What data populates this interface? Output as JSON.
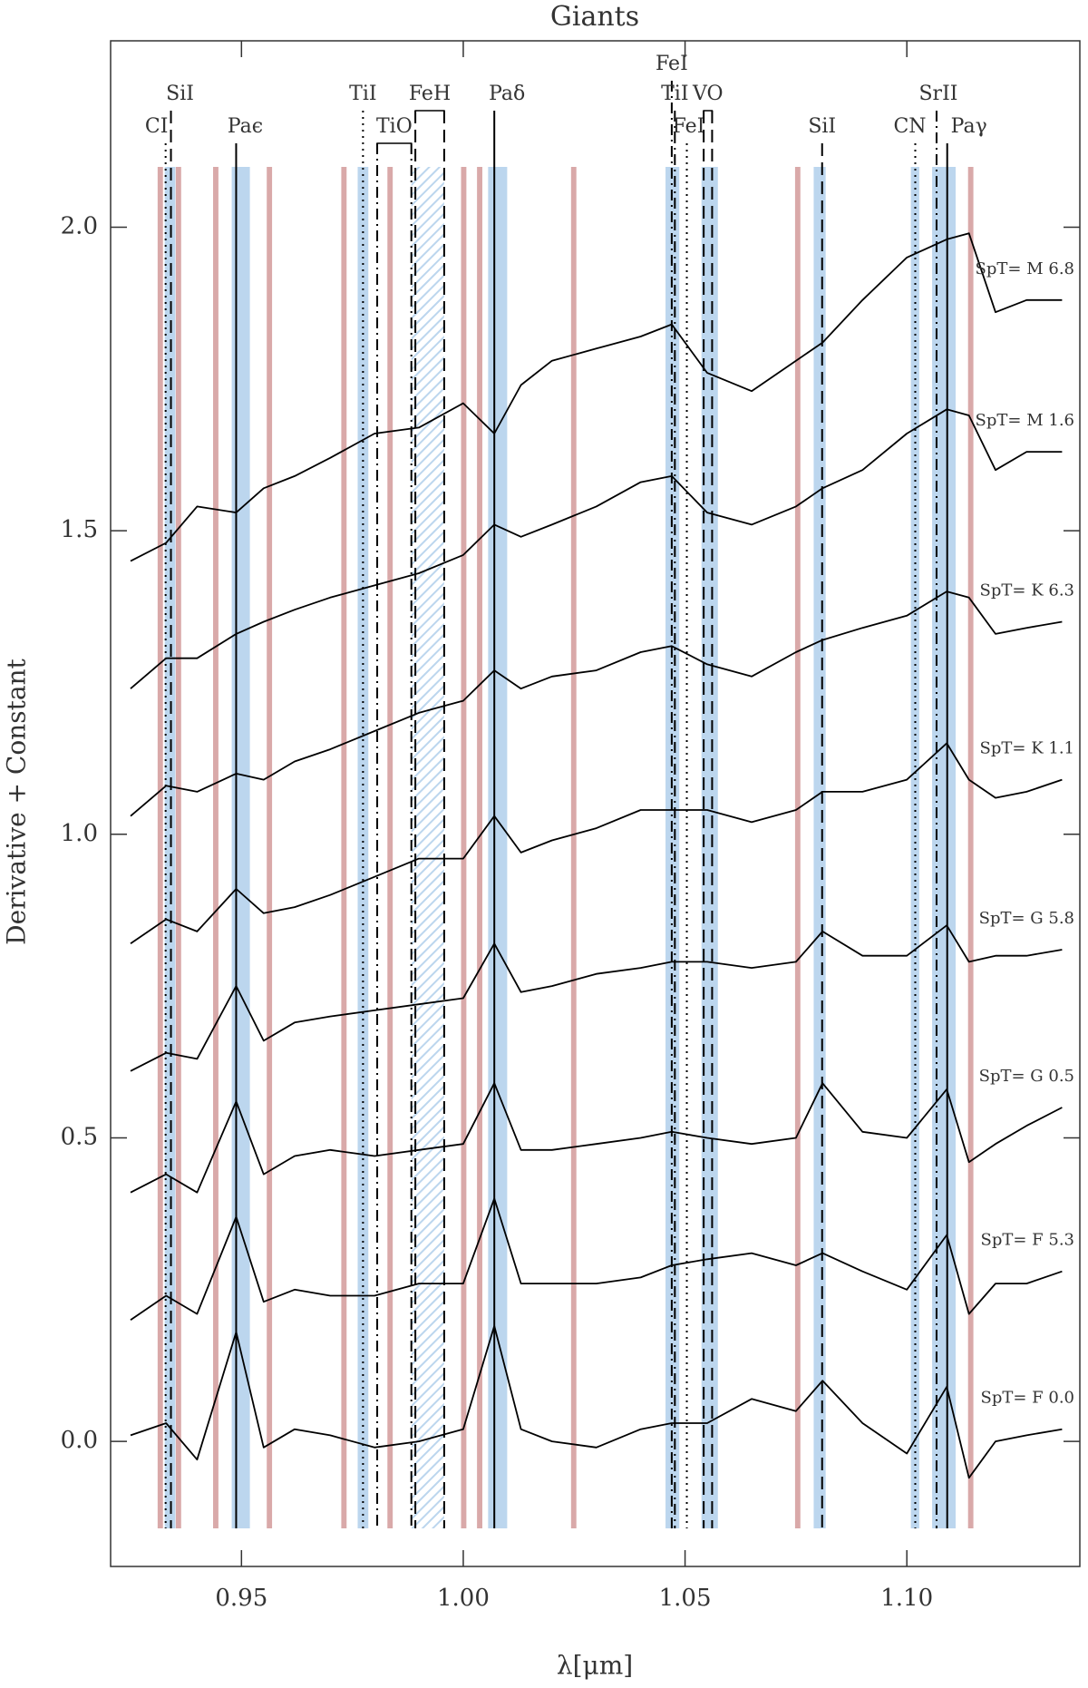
{
  "chart_data": {
    "type": "line",
    "title": "Giants",
    "xlabel": "λ[μm]",
    "ylabel": "Derivative + Constant",
    "xlim": [
      0.9205,
      1.139
    ],
    "ylim": [
      -0.206,
      2.307
    ],
    "xticks": [
      0.95,
      {
        "value": 1.0,
        "label": "1.00"
      },
      1.05,
      {
        "value": 1.1,
        "label": "1.10"
      }
    ],
    "yticks": [
      {
        "value": 0,
        "label": "0.0"
      },
      0.5,
      {
        "value": 1.0,
        "label": "1.0"
      },
      1.5,
      {
        "value": 2.0,
        "label": "2.0"
      }
    ],
    "x": [
      0.925,
      0.933,
      0.94,
      0.9488,
      0.955,
      0.962,
      0.97,
      0.98,
      0.99,
      1.0,
      1.007,
      1.013,
      1.02,
      1.03,
      1.04,
      1.047,
      1.055,
      1.065,
      1.075,
      1.081,
      1.09,
      1.1,
      1.109,
      1.114,
      1.12,
      1.127,
      1.135
    ],
    "series": [
      {
        "name": "SpT= F 0.0",
        "color": "#000000",
        "values": [
          0.01,
          0.03,
          -0.03,
          0.18,
          -0.01,
          0.02,
          0.01,
          -0.01,
          0.0,
          0.02,
          0.19,
          0.02,
          0.0,
          -0.01,
          0.02,
          0.03,
          0.03,
          0.07,
          0.05,
          0.1,
          0.03,
          -0.02,
          0.09,
          -0.06,
          0.0,
          0.01,
          0.02
        ]
      },
      {
        "name": "SpT= F 5.3",
        "color": "#000000",
        "values": [
          0.2,
          0.24,
          0.21,
          0.37,
          0.23,
          0.25,
          0.24,
          0.24,
          0.26,
          0.26,
          0.4,
          0.26,
          0.26,
          0.26,
          0.27,
          0.29,
          0.3,
          0.31,
          0.29,
          0.31,
          0.28,
          0.25,
          0.34,
          0.21,
          0.26,
          0.26,
          0.28
        ]
      },
      {
        "name": "SpT= G 0.5",
        "color": "#000000",
        "values": [
          0.41,
          0.44,
          0.41,
          0.56,
          0.44,
          0.47,
          0.48,
          0.47,
          0.48,
          0.49,
          0.59,
          0.48,
          0.48,
          0.49,
          0.5,
          0.51,
          0.5,
          0.49,
          0.5,
          0.59,
          0.51,
          0.5,
          0.58,
          0.46,
          0.49,
          0.52,
          0.55
        ]
      },
      {
        "name": "SpT= G 5.8",
        "color": "#000000",
        "values": [
          0.61,
          0.64,
          0.63,
          0.75,
          0.66,
          0.69,
          0.7,
          0.71,
          0.72,
          0.73,
          0.82,
          0.74,
          0.75,
          0.77,
          0.78,
          0.79,
          0.79,
          0.78,
          0.79,
          0.84,
          0.8,
          0.8,
          0.85,
          0.79,
          0.8,
          0.8,
          0.81
        ]
      },
      {
        "name": "SpT= K 1.1",
        "color": "#000000",
        "values": [
          0.82,
          0.86,
          0.84,
          0.91,
          0.87,
          0.88,
          0.9,
          0.93,
          0.96,
          0.96,
          1.03,
          0.97,
          0.99,
          1.01,
          1.04,
          1.04,
          1.04,
          1.02,
          1.04,
          1.07,
          1.07,
          1.09,
          1.15,
          1.09,
          1.06,
          1.07,
          1.09
        ]
      },
      {
        "name": "SpT= K 6.3",
        "color": "#000000",
        "values": [
          1.03,
          1.08,
          1.07,
          1.1,
          1.09,
          1.12,
          1.14,
          1.17,
          1.2,
          1.22,
          1.27,
          1.24,
          1.26,
          1.27,
          1.3,
          1.31,
          1.28,
          1.26,
          1.3,
          1.32,
          1.34,
          1.36,
          1.4,
          1.39,
          1.33,
          1.34,
          1.35
        ]
      },
      {
        "name": "SpT= M 1.6",
        "color": "#000000",
        "values": [
          1.24,
          1.29,
          1.29,
          1.33,
          1.35,
          1.37,
          1.39,
          1.41,
          1.43,
          1.46,
          1.51,
          1.49,
          1.51,
          1.54,
          1.58,
          1.59,
          1.53,
          1.51,
          1.54,
          1.57,
          1.6,
          1.66,
          1.7,
          1.69,
          1.6,
          1.63,
          1.63
        ]
      },
      {
        "name": "SpT= M 6.8",
        "color": "#000000",
        "values": [
          1.45,
          1.48,
          1.54,
          1.53,
          1.57,
          1.59,
          1.62,
          1.66,
          1.67,
          1.71,
          1.66,
          1.74,
          1.78,
          1.8,
          1.82,
          1.84,
          1.76,
          1.73,
          1.78,
          1.81,
          1.88,
          1.95,
          1.98,
          1.99,
          1.86,
          1.88,
          1.88
        ]
      }
    ],
    "features": [
      {
        "label": "CI",
        "x": [
          0.9329
        ],
        "style": "dotted"
      },
      {
        "label": "SiI",
        "x": [
          0.9341
        ],
        "style": "dashed"
      },
      {
        "label": "Paϵ",
        "x": [
          0.9488
        ],
        "style": "solid"
      },
      {
        "label": "TiI",
        "x": [
          0.9774
        ],
        "style": "dotted"
      },
      {
        "label": "TiO",
        "x": [
          0.9806,
          0.9883
        ],
        "style": "dashdot"
      },
      {
        "label": "FeH",
        "x": [
          0.9892,
          0.9957
        ],
        "style": "dashed"
      },
      {
        "label": "Paδ",
        "x": [
          1.007
        ],
        "style": "solid"
      },
      {
        "label": "FeI",
        "x": [
          1.047
        ],
        "style": "dashdot"
      },
      {
        "label": "TiI",
        "x": [
          1.0477
        ],
        "style": "dashdot"
      },
      {
        "label": "FeI",
        "x": [
          1.0504
        ],
        "style": "dotted"
      },
      {
        "label": "VO",
        "x": [
          1.0542,
          1.0561
        ],
        "style": "dashed"
      },
      {
        "label": "SiI",
        "x": [
          1.0809
        ],
        "style": "dashed"
      },
      {
        "label": "CN",
        "x": [
          1.1019
        ],
        "style": "dotted"
      },
      {
        "label": "SrII",
        "x": [
          1.1067
        ],
        "style": "dashdot"
      },
      {
        "label": "Paγ",
        "x": [
          1.1091
        ],
        "style": "solid"
      }
    ],
    "bands": [
      {
        "x": [
          0.9311,
          0.9323
        ],
        "color": "#d9a9a9"
      },
      {
        "x": [
          0.9352,
          0.9364
        ],
        "color": "#d9a9a9"
      },
      {
        "x": [
          0.9436,
          0.9448
        ],
        "color": "#d9a9a9"
      },
      {
        "x": [
          0.9557,
          0.9569
        ],
        "color": "#d9a9a9"
      },
      {
        "x": [
          0.9725,
          0.9737
        ],
        "color": "#d9a9a9"
      },
      {
        "x": [
          0.9829,
          0.9841
        ],
        "color": "#d9a9a9"
      },
      {
        "x": [
          0.9995,
          1.0007
        ],
        "color": "#d9a9a9"
      },
      {
        "x": [
          1.0031,
          1.0043
        ],
        "color": "#d9a9a9"
      },
      {
        "x": [
          1.0086,
          1.0098
        ],
        "color": "#d9a9a9"
      },
      {
        "x": [
          1.0243,
          1.0255
        ],
        "color": "#d9a9a9"
      },
      {
        "x": [
          1.0748,
          1.076
        ],
        "color": "#d9a9a9"
      },
      {
        "x": [
          1.1138,
          1.115
        ],
        "color": "#d9a9a9"
      },
      {
        "x": [
          0.9327,
          0.9351
        ],
        "color": "#bcd6ee"
      },
      {
        "x": [
          0.9478,
          0.9519
        ],
        "color": "#bcd6ee"
      },
      {
        "x": [
          0.9762,
          0.9786
        ],
        "color": "#bcd6ee"
      },
      {
        "x": [
          0.9883,
          0.9957
        ],
        "color": "#bcd6ee",
        "hatch": true
      },
      {
        "x": [
          1.0056,
          1.0099
        ],
        "color": "#bcd6ee"
      },
      {
        "x": [
          1.0456,
          1.0487
        ],
        "color": "#bcd6ee"
      },
      {
        "x": [
          1.0537,
          1.0574
        ],
        "color": "#bcd6ee"
      },
      {
        "x": [
          1.079,
          1.0817
        ],
        "color": "#bcd6ee"
      },
      {
        "x": [
          1.1009,
          1.1028
        ],
        "color": "#bcd6ee"
      },
      {
        "x": [
          1.1057,
          1.111
        ],
        "color": "#bcd6ee"
      }
    ]
  }
}
